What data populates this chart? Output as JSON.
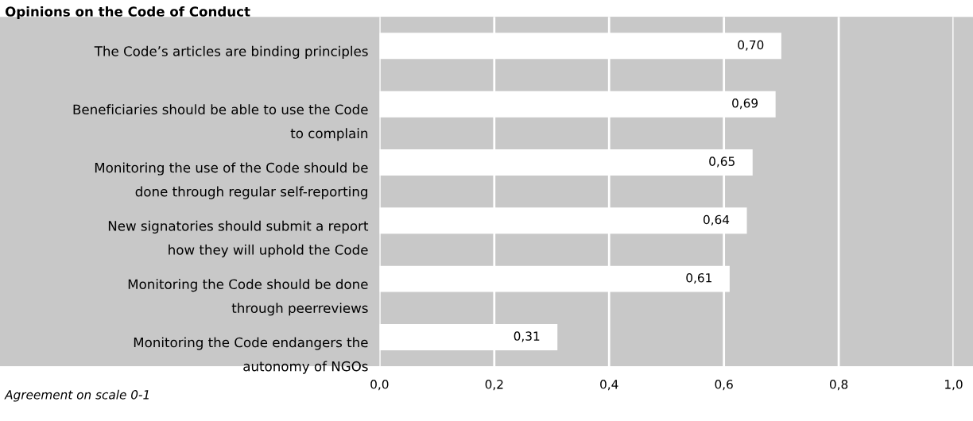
{
  "chart_data": {
    "type": "bar",
    "orientation": "horizontal",
    "title": "Opinions on the Code of Conduct",
    "xlabel": "Agreement on scale 0-1",
    "categories": [
      "The Code’s articles are binding principles",
      "Beneficiaries should be able to use the Code\nto complain",
      "Monitoring the use of the Code should be\ndone through regular self-reporting",
      "New signatories should submit a report\nhow they will uphold the Code",
      "Monitoring the Code should be done\nthrough peerreviews",
      "Monitoring the Code endangers the\nautonomy of NGOs"
    ],
    "values": [
      0.7,
      0.69,
      0.65,
      0.64,
      0.61,
      0.31
    ],
    "value_labels": [
      "0,70",
      "0,69",
      "0,65",
      "0,64",
      "0,61",
      "0,31"
    ],
    "color": "#ffffff",
    "xlim": [
      0,
      1
    ],
    "xticks": [
      {
        "value": 0,
        "label": "0,0"
      },
      {
        "value": 0.2,
        "label": "0,2"
      },
      {
        "value": 0.4,
        "label": "0,4"
      },
      {
        "value": 0.6,
        "label": "0,6"
      },
      {
        "value": 0.8,
        "label": "0,8"
      },
      {
        "value": 1,
        "label": "1,0"
      }
    ],
    "grid": "x",
    "legend": false
  }
}
